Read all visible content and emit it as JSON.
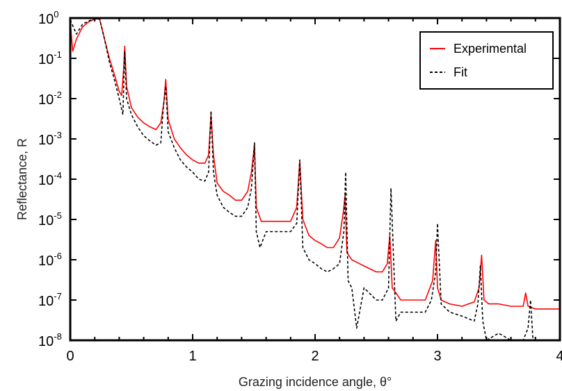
{
  "chart_data": {
    "type": "line",
    "title": "",
    "xlabel": "Grazing incidence angle, θ°",
    "ylabel": "Reflectance, R",
    "x_scale": "linear",
    "y_scale": "log",
    "xlim": [
      0,
      4
    ],
    "ylim": [
      1e-08,
      1
    ],
    "x_ticks": [
      {
        "value": 0,
        "label": "0"
      },
      {
        "value": 1,
        "label": "1"
      },
      {
        "value": 2,
        "label": "2"
      },
      {
        "value": 3,
        "label": "3"
      },
      {
        "value": 4,
        "label": "4"
      }
    ],
    "y_ticks": [
      {
        "value": 1,
        "base": "10",
        "exp": "0"
      },
      {
        "value": 0.1,
        "base": "10",
        "exp": "-1"
      },
      {
        "value": 0.01,
        "base": "10",
        "exp": "-2"
      },
      {
        "value": 0.001,
        "base": "10",
        "exp": "-3"
      },
      {
        "value": 0.0001,
        "base": "10",
        "exp": "-4"
      },
      {
        "value": 1e-05,
        "base": "10",
        "exp": "-5"
      },
      {
        "value": 1e-06,
        "base": "10",
        "exp": "-6"
      },
      {
        "value": 1e-07,
        "base": "10",
        "exp": "-7"
      },
      {
        "value": 1e-08,
        "base": "10",
        "exp": "-8"
      }
    ],
    "grid": false,
    "legend_position": "top-right",
    "series": [
      {
        "name": "Experimental",
        "color": "#ff0000",
        "line_style": "solid",
        "x": [
          0.0,
          0.02,
          0.05,
          0.1,
          0.15,
          0.2,
          0.24,
          0.28,
          0.32,
          0.36,
          0.4,
          0.42,
          0.435,
          0.445,
          0.46,
          0.5,
          0.55,
          0.6,
          0.65,
          0.7,
          0.74,
          0.765,
          0.78,
          0.8,
          0.85,
          0.9,
          0.95,
          1.0,
          1.05,
          1.1,
          1.13,
          1.15,
          1.17,
          1.2,
          1.25,
          1.3,
          1.35,
          1.4,
          1.45,
          1.48,
          1.505,
          1.52,
          1.56,
          1.6,
          1.7,
          1.8,
          1.85,
          1.875,
          1.9,
          1.95,
          2.0,
          2.05,
          2.1,
          2.15,
          2.2,
          2.23,
          2.245,
          2.26,
          2.3,
          2.4,
          2.5,
          2.55,
          2.59,
          2.61,
          2.63,
          2.66,
          2.7,
          2.8,
          2.9,
          2.96,
          2.985,
          3.0,
          3.03,
          3.1,
          3.2,
          3.3,
          3.34,
          3.36,
          3.38,
          3.42,
          3.5,
          3.6,
          3.7,
          3.72,
          3.74,
          3.8,
          3.9,
          4.0
        ],
        "y": [
          0.85,
          0.15,
          0.3,
          0.6,
          0.8,
          0.95,
          0.95,
          0.3,
          0.1,
          0.04,
          0.015,
          0.012,
          0.05,
          0.2,
          0.02,
          0.006,
          0.0035,
          0.0025,
          0.002,
          0.0017,
          0.0025,
          0.008,
          0.03,
          0.003,
          0.001,
          0.0006,
          0.0004,
          0.0003,
          0.00025,
          0.00025,
          0.0004,
          0.004,
          0.0004,
          8e-05,
          5e-05,
          4e-05,
          3e-05,
          3e-05,
          5e-05,
          0.00015,
          0.0007,
          2e-05,
          9e-06,
          9e-06,
          9e-06,
          9e-06,
          2e-05,
          0.00028,
          1e-05,
          4e-06,
          3e-06,
          2.5e-06,
          2e-06,
          2e-06,
          3.5e-06,
          1.5e-05,
          4e-05,
          1.5e-06,
          1e-06,
          7e-07,
          5e-07,
          5e-07,
          8e-07,
          4e-06,
          2e-07,
          1.5e-07,
          1e-07,
          1e-07,
          1e-07,
          3e-07,
          3e-06,
          2e-07,
          1e-07,
          8e-08,
          7e-08,
          9e-08,
          2e-07,
          1.3e-06,
          1e-07,
          8e-08,
          8e-08,
          7e-08,
          7e-08,
          1.5e-07,
          7e-08,
          6e-08,
          6e-08,
          6e-08
        ]
      },
      {
        "name": "Fit",
        "color": "#000000",
        "line_style": "dashed",
        "x": [
          0.0,
          0.05,
          0.1,
          0.15,
          0.2,
          0.24,
          0.28,
          0.32,
          0.36,
          0.4,
          0.43,
          0.445,
          0.46,
          0.5,
          0.55,
          0.6,
          0.65,
          0.7,
          0.74,
          0.76,
          0.78,
          0.8,
          0.85,
          0.9,
          0.95,
          1.0,
          1.05,
          1.1,
          1.13,
          1.15,
          1.17,
          1.2,
          1.25,
          1.3,
          1.35,
          1.4,
          1.45,
          1.48,
          1.505,
          1.52,
          1.55,
          1.6,
          1.7,
          1.8,
          1.85,
          1.875,
          1.9,
          1.95,
          2.0,
          2.05,
          2.1,
          2.15,
          2.2,
          2.235,
          2.25,
          2.27,
          2.3,
          2.34,
          2.4,
          2.5,
          2.55,
          2.6,
          2.62,
          2.66,
          2.7,
          2.8,
          2.9,
          2.95,
          2.985,
          3.0,
          3.03,
          3.1,
          3.2,
          3.3,
          3.33,
          3.35,
          3.37,
          3.4,
          3.5,
          3.6,
          3.65,
          3.7,
          3.74,
          3.76,
          3.78
        ],
        "y": [
          0.9,
          0.4,
          0.7,
          0.85,
          0.95,
          0.95,
          0.3,
          0.08,
          0.03,
          0.01,
          0.004,
          0.15,
          0.01,
          0.004,
          0.002,
          0.0012,
          0.0009,
          0.0007,
          0.0008,
          0.006,
          0.02,
          0.0015,
          0.0006,
          0.0003,
          0.0002,
          0.00015,
          0.0001,
          9e-05,
          0.00015,
          0.005,
          0.00015,
          4e-05,
          2e-05,
          1.5e-05,
          1.2e-05,
          1.2e-05,
          2e-05,
          6e-05,
          0.0008,
          5e-06,
          2e-06,
          5e-06,
          5e-06,
          5e-06,
          8e-06,
          0.0003,
          2e-06,
          1e-06,
          8e-07,
          6e-07,
          5e-07,
          6e-07,
          8e-07,
          5e-06,
          0.00015,
          3e-07,
          2e-07,
          2e-08,
          2e-07,
          1e-07,
          1e-07,
          2e-07,
          6e-05,
          3e-08,
          5e-08,
          5e-08,
          5e-08,
          1e-07,
          5e-07,
          8e-06,
          8e-08,
          5e-08,
          4e-08,
          3e-08,
          8e-08,
          7e-07,
          3e-08,
          1e-08,
          1.5e-08,
          1e-08,
          1e-08,
          1e-08,
          2e-08,
          1e-07,
          1e-08
        ]
      }
    ]
  }
}
